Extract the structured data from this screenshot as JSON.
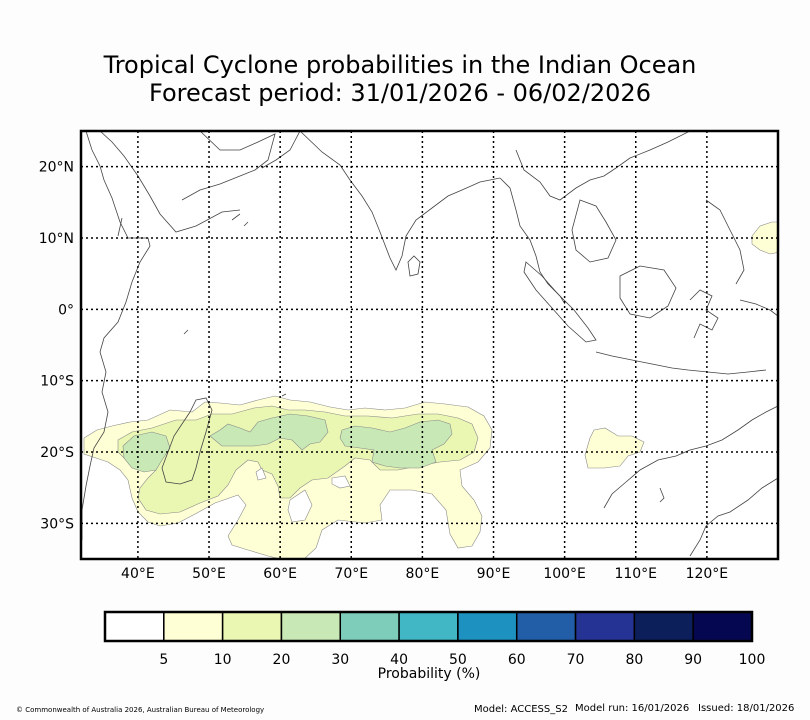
{
  "title": {
    "line1": "Tropical Cyclone probabilities in the Indian Ocean",
    "line2": "Forecast period: 31/01/2026 - 06/02/2026"
  },
  "map": {
    "lat_range": [
      -35,
      25
    ],
    "lon_range": [
      32,
      130
    ],
    "lon_ticks": [
      40,
      50,
      60,
      70,
      80,
      90,
      100,
      110,
      120
    ],
    "lon_labels": [
      "40°E",
      "50°E",
      "60°E",
      "70°E",
      "80°E",
      "90°E",
      "100°E",
      "110°E",
      "120°E"
    ],
    "lat_ticks": [
      20,
      10,
      0,
      -10,
      -20,
      -30
    ],
    "lat_labels": [
      "20°N",
      "10°N",
      "0°",
      "10°S",
      "20°S",
      "30°S"
    ],
    "probability_regions": [
      {
        "level": 5,
        "color": "#ffffd5",
        "area": "South-west Indian Ocean near Madagascar and Mozambique Channel"
      },
      {
        "level": 10,
        "color": "#eaf7b3",
        "area": "Mozambique Channel and south-west Indian Ocean"
      },
      {
        "level": 20,
        "color": "#c8e9b5",
        "area": "Central south Indian Ocean and Mozambique Channel"
      },
      {
        "level": 5,
        "color": "#ffffd5",
        "area": "North-west Australia"
      },
      {
        "level": 5,
        "color": "#ffffd5",
        "area": "Philippines east coast"
      }
    ]
  },
  "colorbar": {
    "colors": [
      "#ffffff",
      "#ffffd5",
      "#eaf7b3",
      "#c8e9b5",
      "#7ecdbb",
      "#41b6c4",
      "#1d91c0",
      "#225ea8",
      "#253494",
      "#0c1f5a",
      "#050850"
    ],
    "tick_labels": [
      "5",
      "10",
      "20",
      "30",
      "40",
      "50",
      "60",
      "70",
      "80",
      "90",
      "100"
    ],
    "label": "Probability (%)"
  },
  "footer": {
    "copyright": "© Commonwealth of Australia 2026, Australian Bureau of Meteorology",
    "model": "Model: ACCESS_S2",
    "model_run": "Model run: 16/01/2026",
    "issued": "Issued: 18/01/2026"
  }
}
